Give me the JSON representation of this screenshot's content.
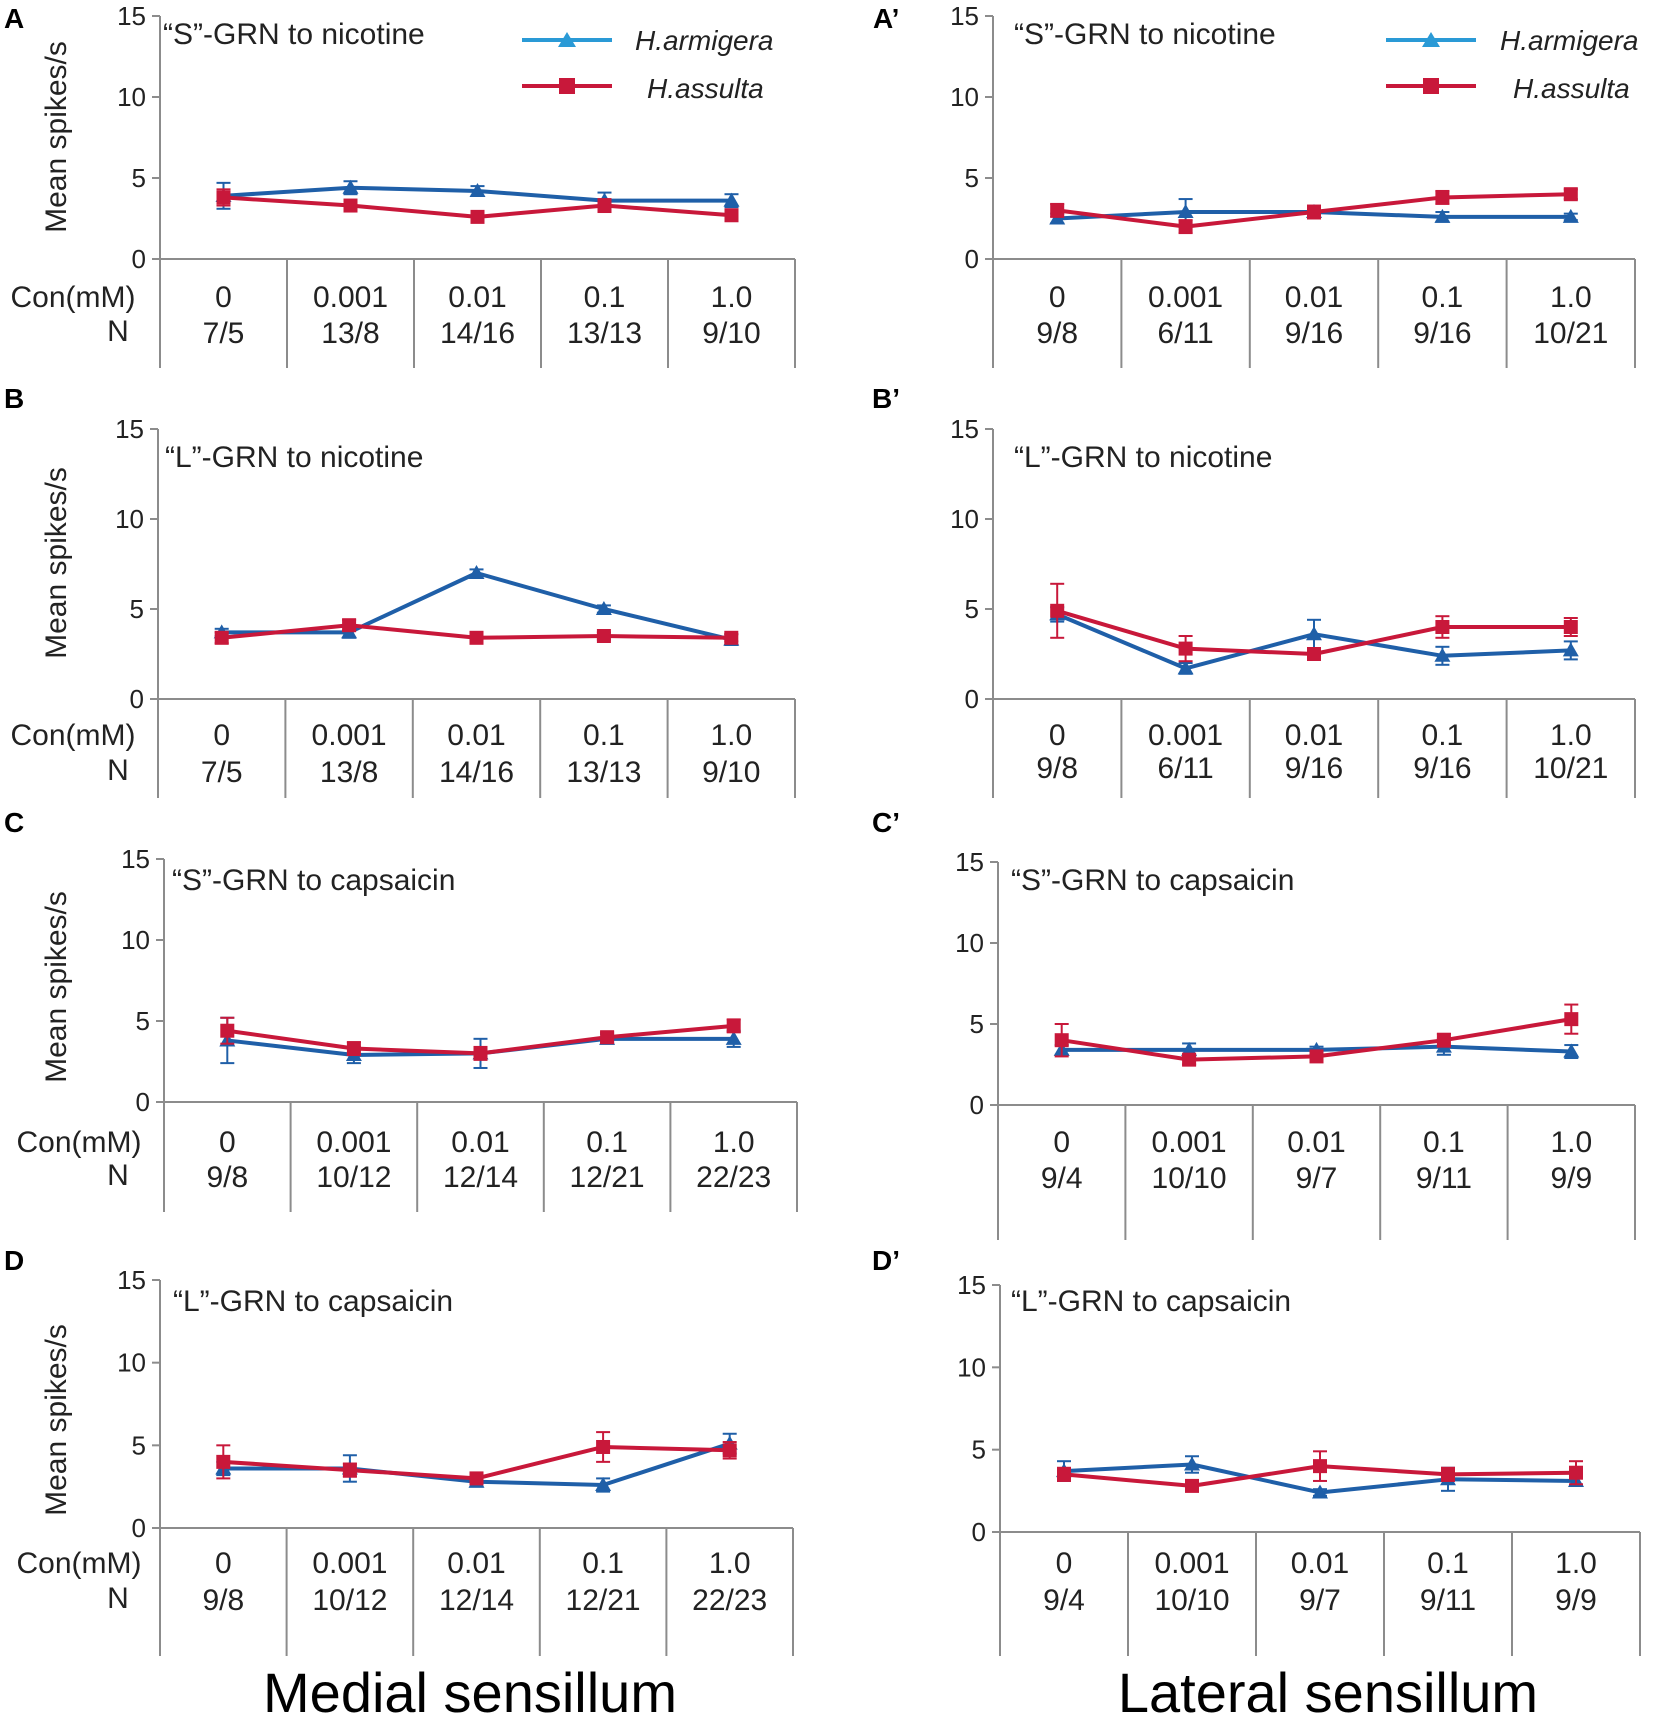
{
  "colors": {
    "armigera": "#1f5fa8",
    "assulta": "#c8183a",
    "legend_armigera": "#2a9ad6",
    "legend_assulta": "#c8183a"
  },
  "legend": {
    "armigera": "H.armigera",
    "assulta": "H.assulta"
  },
  "footer": {
    "left": "Medial sensillum",
    "right": "Lateral sensillum"
  },
  "chart_data": [
    {
      "id": "A",
      "letter": "A",
      "type": "line",
      "title": "“S”-GRN to nicotine",
      "ylabel": "Mean spikes/s",
      "ylim": [
        0,
        15
      ],
      "yticks": [
        "0",
        "5",
        "10",
        "15"
      ],
      "con_label": "Con(mM)",
      "n_label": "N",
      "categories": [
        "0",
        "0.001",
        "0.01",
        "0.1",
        "1.0"
      ],
      "n": [
        "7/5",
        "13/8",
        "14/16",
        "13/13",
        "9/10"
      ],
      "series": [
        {
          "name": "H.armigera",
          "values": [
            3.9,
            4.4,
            4.2,
            3.6,
            3.6
          ],
          "errors": [
            0.8,
            0.4,
            0.3,
            0.5,
            0.4
          ]
        },
        {
          "name": "H.assulta",
          "values": [
            3.8,
            3.3,
            2.6,
            3.3,
            2.7
          ],
          "errors": [
            0.5,
            0.3,
            0.3,
            0.4,
            0.3
          ]
        }
      ]
    },
    {
      "id": "A2",
      "letter": "A’",
      "type": "line",
      "title": "“S”-GRN to nicotine",
      "ylabel": "",
      "ylim": [
        0,
        15
      ],
      "yticks": [
        "0",
        "5",
        "10",
        "15"
      ],
      "con_label": "",
      "n_label": "",
      "categories": [
        "0",
        "0.001",
        "0.01",
        "0.1",
        "1.0"
      ],
      "n": [
        "9/8",
        "6/11",
        "9/16",
        "9/16",
        "10/21"
      ],
      "series": [
        {
          "name": "H.armigera",
          "values": [
            2.5,
            2.9,
            2.9,
            2.6,
            2.6
          ],
          "errors": [
            0.3,
            0.8,
            0.3,
            0.3,
            0.2
          ]
        },
        {
          "name": "H.assulta",
          "values": [
            3.0,
            2.0,
            2.9,
            3.8,
            4.0
          ],
          "errors": [
            0.4,
            0.4,
            0.4,
            0.4,
            0.3
          ]
        }
      ]
    },
    {
      "id": "B",
      "letter": "B",
      "type": "line",
      "title": "“L”-GRN to nicotine",
      "ylabel": "Mean spikes/s",
      "ylim": [
        0,
        15
      ],
      "yticks": [
        "0",
        "5",
        "10",
        "15"
      ],
      "con_label": "Con(mM)",
      "n_label": "N",
      "categories": [
        "0",
        "0.001",
        "0.01",
        "0.1",
        "1.0"
      ],
      "n": [
        "7/5",
        "13/8",
        "14/16",
        "13/13",
        "9/10"
      ],
      "series": [
        {
          "name": "H.armigera",
          "values": [
            3.7,
            3.7,
            7.0,
            5.0,
            3.3
          ],
          "errors": [
            0.2,
            0.3,
            0.2,
            0.2,
            0.3
          ]
        },
        {
          "name": "H.assulta",
          "values": [
            3.4,
            4.1,
            3.4,
            3.5,
            3.4
          ],
          "errors": [
            0.3,
            0.3,
            0.2,
            0.2,
            0.2
          ]
        }
      ]
    },
    {
      "id": "B2",
      "letter": "B’",
      "type": "line",
      "title": "“L”-GRN to nicotine",
      "ylabel": "",
      "ylim": [
        0,
        15
      ],
      "yticks": [
        "0",
        "5",
        "10",
        "15"
      ],
      "con_label": "",
      "n_label": "",
      "categories": [
        "0",
        "0.001",
        "0.01",
        "0.1",
        "1.0"
      ],
      "n": [
        "9/8",
        "6/11",
        "9/16",
        "9/16",
        "10/21"
      ],
      "series": [
        {
          "name": "H.armigera",
          "values": [
            4.7,
            1.7,
            3.6,
            2.4,
            2.7
          ],
          "errors": [
            0.4,
            0.3,
            0.8,
            0.5,
            0.5
          ]
        },
        {
          "name": "H.assulta",
          "values": [
            4.9,
            2.8,
            2.5,
            4.0,
            4.0
          ],
          "errors": [
            1.5,
            0.7,
            0.3,
            0.6,
            0.5
          ]
        }
      ]
    },
    {
      "id": "C",
      "letter": "C",
      "type": "line",
      "title": "“S”-GRN to capsaicin",
      "ylabel": "Mean spikes/s",
      "ylim": [
        0,
        15
      ],
      "yticks": [
        "0",
        "5",
        "10",
        "15"
      ],
      "con_label": "Con(mM)",
      "n_label": "N",
      "categories": [
        "0",
        "0.001",
        "0.01",
        "0.1",
        "1.0"
      ],
      "n": [
        "9/8",
        "10/12",
        "12/14",
        "12/21",
        "22/23"
      ],
      "series": [
        {
          "name": "H.armigera",
          "values": [
            3.8,
            2.9,
            3.0,
            3.9,
            3.9
          ],
          "errors": [
            1.4,
            0.5,
            0.9,
            0.3,
            0.5
          ]
        },
        {
          "name": "H.assulta",
          "values": [
            4.4,
            3.3,
            3.0,
            4.0,
            4.7
          ],
          "errors": [
            0.8,
            0.4,
            0.4,
            0.3,
            0.4
          ]
        }
      ]
    },
    {
      "id": "C2",
      "letter": "C’",
      "type": "line",
      "title": "“S”-GRN to capsaicin",
      "ylabel": "",
      "ylim": [
        0,
        15
      ],
      "yticks": [
        "0",
        "5",
        "10",
        "15"
      ],
      "con_label": "",
      "n_label": "",
      "categories": [
        "0",
        "0.001",
        "0.01",
        "0.1",
        "1.0"
      ],
      "n": [
        "9/4",
        "10/10",
        "9/7",
        "9/11",
        "9/9"
      ],
      "series": [
        {
          "name": "H.armigera",
          "values": [
            3.4,
            3.4,
            3.4,
            3.6,
            3.3
          ],
          "errors": [
            0.3,
            0.4,
            0.2,
            0.5,
            0.4
          ]
        },
        {
          "name": "H.assulta",
          "values": [
            4.0,
            2.8,
            3.0,
            4.0,
            5.3
          ],
          "errors": [
            1.0,
            0.3,
            0.3,
            0.4,
            0.9
          ]
        }
      ]
    },
    {
      "id": "D",
      "letter": "D",
      "type": "line",
      "title": "“L”-GRN to capsaicin",
      "ylabel": "Mean spikes/s",
      "ylim": [
        0,
        15
      ],
      "yticks": [
        "0",
        "5",
        "10",
        "15"
      ],
      "con_label": "Con(mM)",
      "n_label": "N",
      "categories": [
        "0",
        "0.001",
        "0.01",
        "0.1",
        "1.0"
      ],
      "n": [
        "9/8",
        "10/12",
        "12/14",
        "12/21",
        "22/23"
      ],
      "series": [
        {
          "name": "H.armigera",
          "values": [
            3.6,
            3.6,
            2.8,
            2.6,
            5.1
          ],
          "errors": [
            0.4,
            0.8,
            0.3,
            0.4,
            0.6
          ]
        },
        {
          "name": "H.assulta",
          "values": [
            4.0,
            3.5,
            3.0,
            4.9,
            4.7
          ],
          "errors": [
            1.0,
            0.4,
            0.3,
            0.9,
            0.5
          ]
        }
      ]
    },
    {
      "id": "D2",
      "letter": "D’",
      "type": "line",
      "title": "“L”-GRN to capsaicin",
      "ylabel": "",
      "ylim": [
        0,
        15
      ],
      "yticks": [
        "0",
        "5",
        "10",
        "15"
      ],
      "con_label": "",
      "n_label": "",
      "categories": [
        "0",
        "0.001",
        "0.01",
        "0.1",
        "1.0"
      ],
      "n": [
        "9/4",
        "10/10",
        "9/7",
        "9/11",
        "9/9"
      ],
      "series": [
        {
          "name": "H.armigera",
          "values": [
            3.7,
            4.1,
            2.4,
            3.2,
            3.1
          ],
          "errors": [
            0.6,
            0.5,
            0.2,
            0.7,
            0.3
          ]
        },
        {
          "name": "H.assulta",
          "values": [
            3.5,
            2.8,
            4.0,
            3.5,
            3.6
          ],
          "errors": [
            0.4,
            0.3,
            0.9,
            0.4,
            0.7
          ]
        }
      ]
    }
  ]
}
